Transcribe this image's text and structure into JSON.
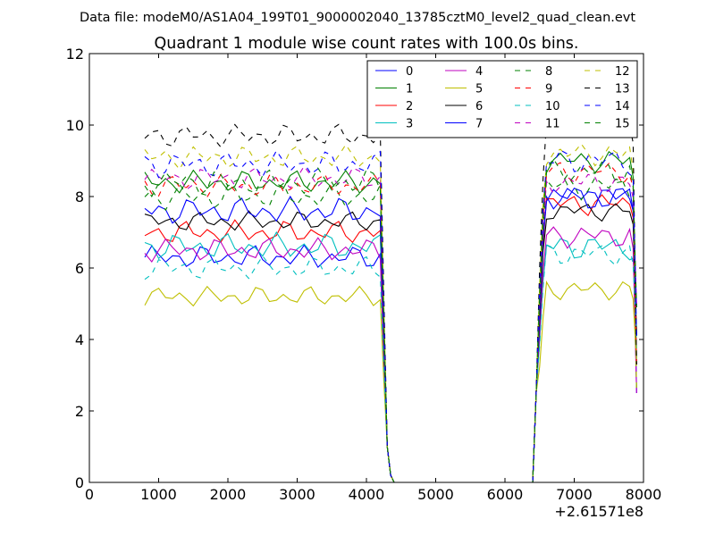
{
  "header": {
    "supertitle": "Data file: modeM0/AS1A04_199T01_9000002040_13785cztM0_level2_quad_clean.evt",
    "title": "Quadrant 1 module wise count rates with 100.0s bins."
  },
  "chart_data": {
    "type": "line",
    "title": "Quadrant 1 module wise count rates with 100.0s bins.",
    "xlabel": "",
    "ylabel": "",
    "x_offset_label": "+2.61571e8",
    "xlim": [
      0,
      8000
    ],
    "ylim": [
      0,
      12
    ],
    "xticks": [
      0,
      1000,
      2000,
      3000,
      4000,
      5000,
      6000,
      7000,
      8000
    ],
    "yticks": [
      0,
      2,
      4,
      6,
      8,
      10,
      12
    ],
    "grid": false,
    "legend_position": "top-right",
    "legend_columns": 4,
    "x": [
      800,
      900,
      1000,
      1100,
      1200,
      1300,
      1400,
      1500,
      1600,
      1700,
      1800,
      1900,
      2000,
      2100,
      2200,
      2300,
      2400,
      2500,
      2600,
      2700,
      2800,
      2900,
      3000,
      3100,
      3200,
      3300,
      3400,
      3500,
      3600,
      3700,
      3800,
      3900,
      4000,
      4100,
      4200,
      4250,
      4300,
      4350,
      4400,
      4500,
      5000,
      6000,
      6400,
      6450,
      6500,
      6550,
      6600,
      6700,
      6800,
      6900,
      7000,
      7100,
      7200,
      7300,
      7400,
      7500,
      7600,
      7700,
      7800,
      7850,
      7900
    ],
    "series": [
      {
        "name": "0",
        "color": "#0000ff",
        "style": "solid",
        "base": 6.3,
        "amp": 0.35,
        "resume": 8.0
      },
      {
        "name": "1",
        "color": "#008000",
        "style": "solid",
        "base": 8.4,
        "amp": 0.35,
        "resume": 9.0
      },
      {
        "name": "2",
        "color": "#ff0000",
        "style": "solid",
        "base": 7.0,
        "amp": 0.35,
        "resume": 7.8
      },
      {
        "name": "3",
        "color": "#00bfbf",
        "style": "solid",
        "base": 6.6,
        "amp": 0.4,
        "resume": 6.6
      },
      {
        "name": "4",
        "color": "#bf00bf",
        "style": "solid",
        "base": 6.5,
        "amp": 0.35,
        "resume": 6.9
      },
      {
        "name": "5",
        "color": "#bfbf00",
        "style": "solid",
        "base": 5.2,
        "amp": 0.3,
        "resume": 5.4
      },
      {
        "name": "6",
        "color": "#000000",
        "style": "solid",
        "base": 7.3,
        "amp": 0.3,
        "resume": 7.6
      },
      {
        "name": "7",
        "color": "#0000ff",
        "style": "solid",
        "base": 7.6,
        "amp": 0.4,
        "resume": 8.0
      },
      {
        "name": "8",
        "color": "#008000",
        "style": "dashed",
        "base": 8.0,
        "amp": 0.4,
        "resume": 8.3
      },
      {
        "name": "9",
        "color": "#ff0000",
        "style": "dashed",
        "base": 8.3,
        "amp": 0.35,
        "resume": 8.7
      },
      {
        "name": "10",
        "color": "#00bfbf",
        "style": "dashed",
        "base": 6.0,
        "amp": 0.35,
        "resume": 6.4
      },
      {
        "name": "11",
        "color": "#bf00bf",
        "style": "dashed",
        "base": 8.5,
        "amp": 0.35,
        "resume": 8.4
      },
      {
        "name": "12",
        "color": "#bfbf00",
        "style": "dashed",
        "base": 9.1,
        "amp": 0.35,
        "resume": 9.2
      },
      {
        "name": "13",
        "color": "#000000",
        "style": "dashed",
        "base": 9.7,
        "amp": 0.35,
        "resume": 10.0
      },
      {
        "name": "14",
        "color": "#0000ff",
        "style": "dashed",
        "base": 8.9,
        "amp": 0.4,
        "resume": 9.0
      },
      {
        "name": "15",
        "color": "#008000",
        "style": "dashed",
        "base": 8.4,
        "amp": 0.4,
        "resume": 8.7
      }
    ]
  }
}
